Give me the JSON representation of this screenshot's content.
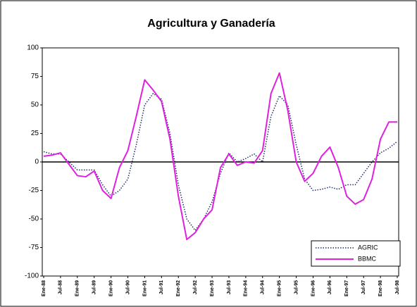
{
  "chart_data": {
    "type": "line",
    "title": "Agricultura y Ganadería",
    "categories": [
      "Ene-88",
      null,
      "Jul-88",
      null,
      "Ene-89",
      null,
      "Jul-89",
      null,
      "Ene-90",
      null,
      "Jul-90",
      null,
      "Ene-91",
      null,
      "Jul-91",
      null,
      "Ene-92",
      null,
      "Jul-92",
      null,
      "Ene-93",
      null,
      "Jul-93",
      null,
      "Ene-94",
      null,
      "Jul-94",
      null,
      "Ene-95",
      null,
      "Jul-95",
      null,
      "Ene-96",
      null,
      "Jul-96",
      null,
      "Ene-97",
      null,
      "Jul-97",
      null,
      "Ene-98",
      null,
      "Jul-98"
    ],
    "series": [
      {
        "name": "AGRIC",
        "color": "#1f2d6b",
        "dash": true,
        "values": [
          9,
          7,
          7,
          0,
          -7,
          -7,
          -7,
          -20,
          -30,
          -25,
          -15,
          15,
          50,
          60,
          55,
          25,
          -20,
          -50,
          -60,
          -50,
          -35,
          -10,
          8,
          0,
          3,
          7,
          0,
          40,
          58,
          50,
          15,
          -15,
          -25,
          -24,
          -22,
          -24,
          -20,
          -20,
          -10,
          0,
          8,
          12,
          18
        ]
      },
      {
        "name": "BBMC",
        "color": "#e020e0",
        "dash": false,
        "values": [
          5,
          6,
          8,
          -2,
          -12,
          -13,
          -8,
          -25,
          -32,
          -5,
          10,
          40,
          72,
          63,
          53,
          20,
          -30,
          -68,
          -62,
          -50,
          -42,
          -5,
          7,
          -3,
          0,
          -1,
          10,
          60,
          78,
          45,
          0,
          -17,
          -10,
          5,
          13,
          -5,
          -30,
          -37,
          -33,
          -15,
          20,
          35,
          35
        ]
      }
    ],
    "ylim": [
      -100,
      100
    ],
    "yticks": [
      -100,
      -75,
      -50,
      -25,
      0,
      25,
      50,
      75,
      100
    ],
    "grid": false,
    "legend": "lower right"
  }
}
